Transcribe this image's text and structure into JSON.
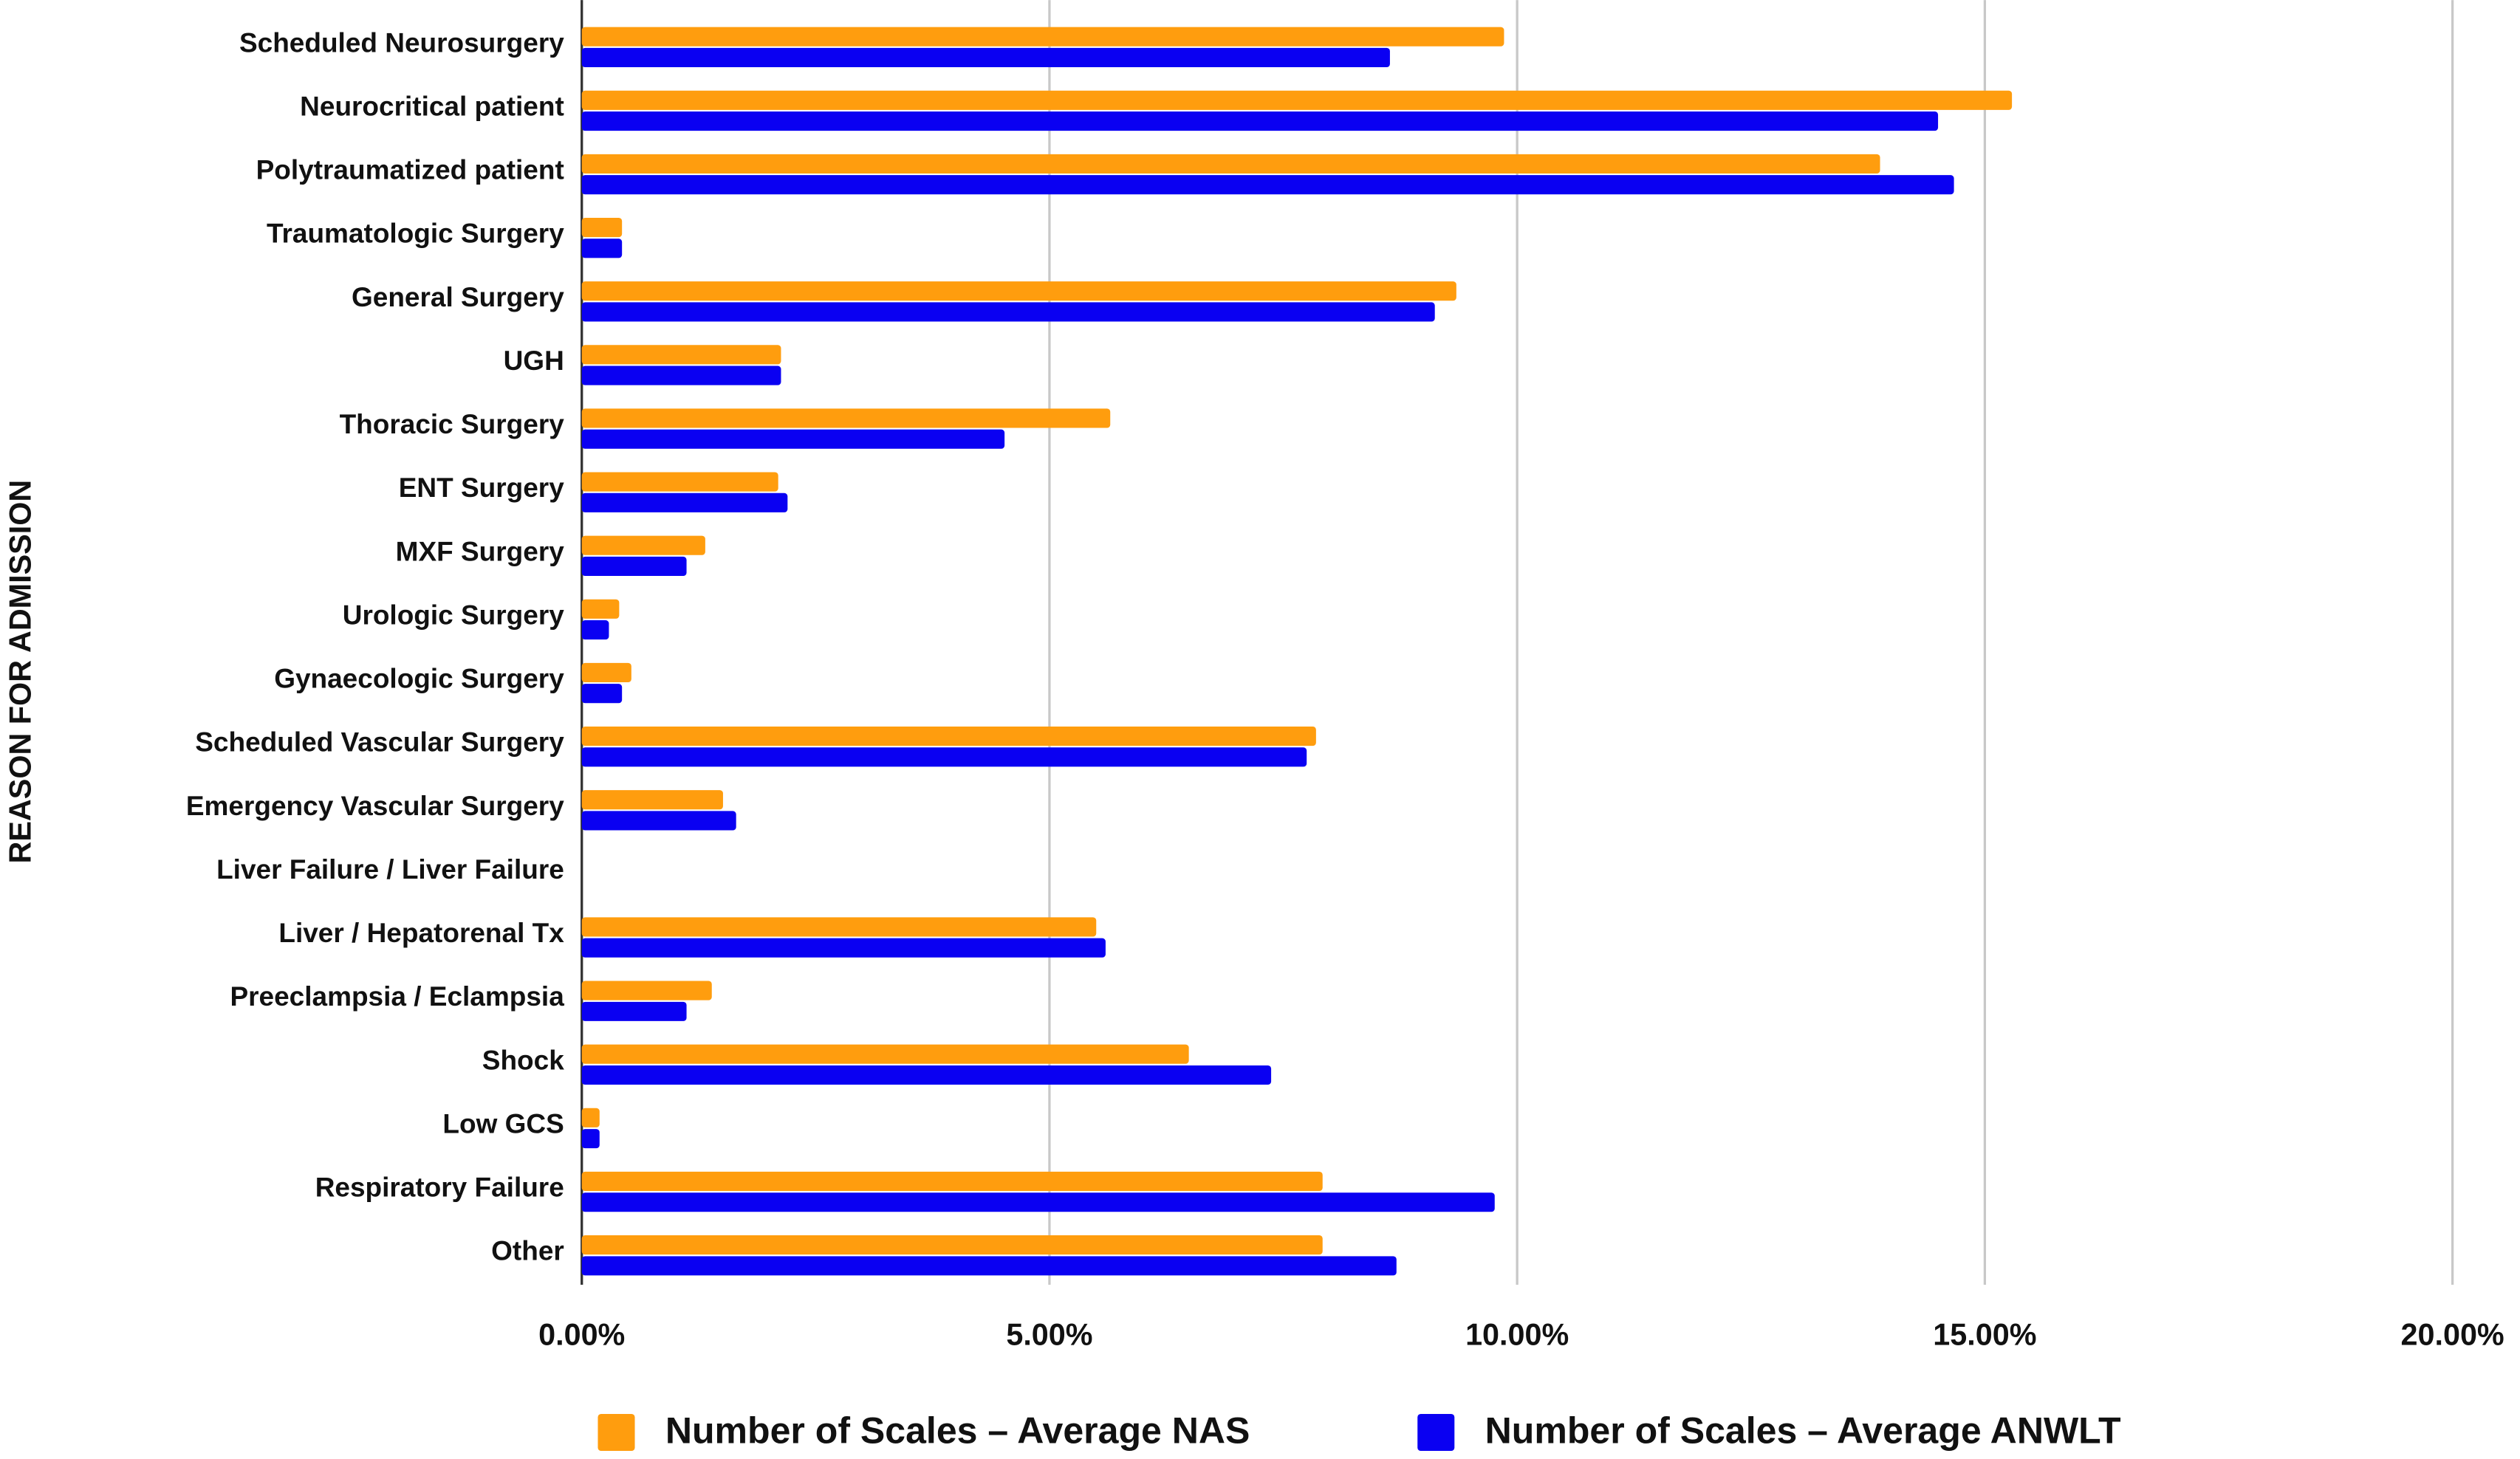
{
  "chart_data": {
    "type": "hbar",
    "y_axis_label": "REASON FOR ADMISSION",
    "categories": [
      "Scheduled Neurosurgery",
      "Neurocritical patient",
      "Polytraumatized patient",
      "Traumatologic Surgery",
      "General Surgery",
      "UGH",
      "Thoracic Surgery",
      "ENT Surgery",
      "MXF Surgery",
      "Urologic Surgery",
      "Gynaecologic Surgery",
      "Scheduled Vascular Surgery",
      "Emergency Vascular Surgery",
      "Liver Failure / Liver Failure",
      "Liver / Hepatorenal Tx",
      "Preeclampsia / Eclampsia",
      "Shock",
      "Low GCS",
      "Respiratory Failure",
      "Other"
    ],
    "series": [
      {
        "name": "Number of Scales – Average NAS",
        "color": "#ff9d0e",
        "values": [
          9.86,
          15.29,
          13.88,
          0.43,
          9.35,
          2.13,
          5.65,
          2.1,
          1.32,
          0.4,
          0.53,
          7.85,
          1.51,
          0,
          5.5,
          1.39,
          6.49,
          0.19,
          7.92,
          7.92
        ]
      },
      {
        "name": "Number of Scales – Average ANWLT",
        "color": "#0a00f2",
        "values": [
          8.64,
          14.5,
          14.67,
          0.43,
          9.12,
          2.13,
          4.52,
          2.2,
          1.12,
          0.29,
          0.43,
          7.75,
          1.65,
          0,
          5.6,
          1.12,
          7.37,
          0.19,
          9.76,
          8.71
        ]
      }
    ],
    "xlim": [
      0,
      20
    ],
    "xticks": [
      {
        "value": 0,
        "label": "0.00%"
      },
      {
        "value": 5,
        "label": "5.00%"
      },
      {
        "value": 10,
        "label": "10.00%"
      },
      {
        "value": 15,
        "label": "15.00%"
      },
      {
        "value": 20,
        "label": "20.00%"
      }
    ],
    "grid": true,
    "legend": "bottom"
  }
}
